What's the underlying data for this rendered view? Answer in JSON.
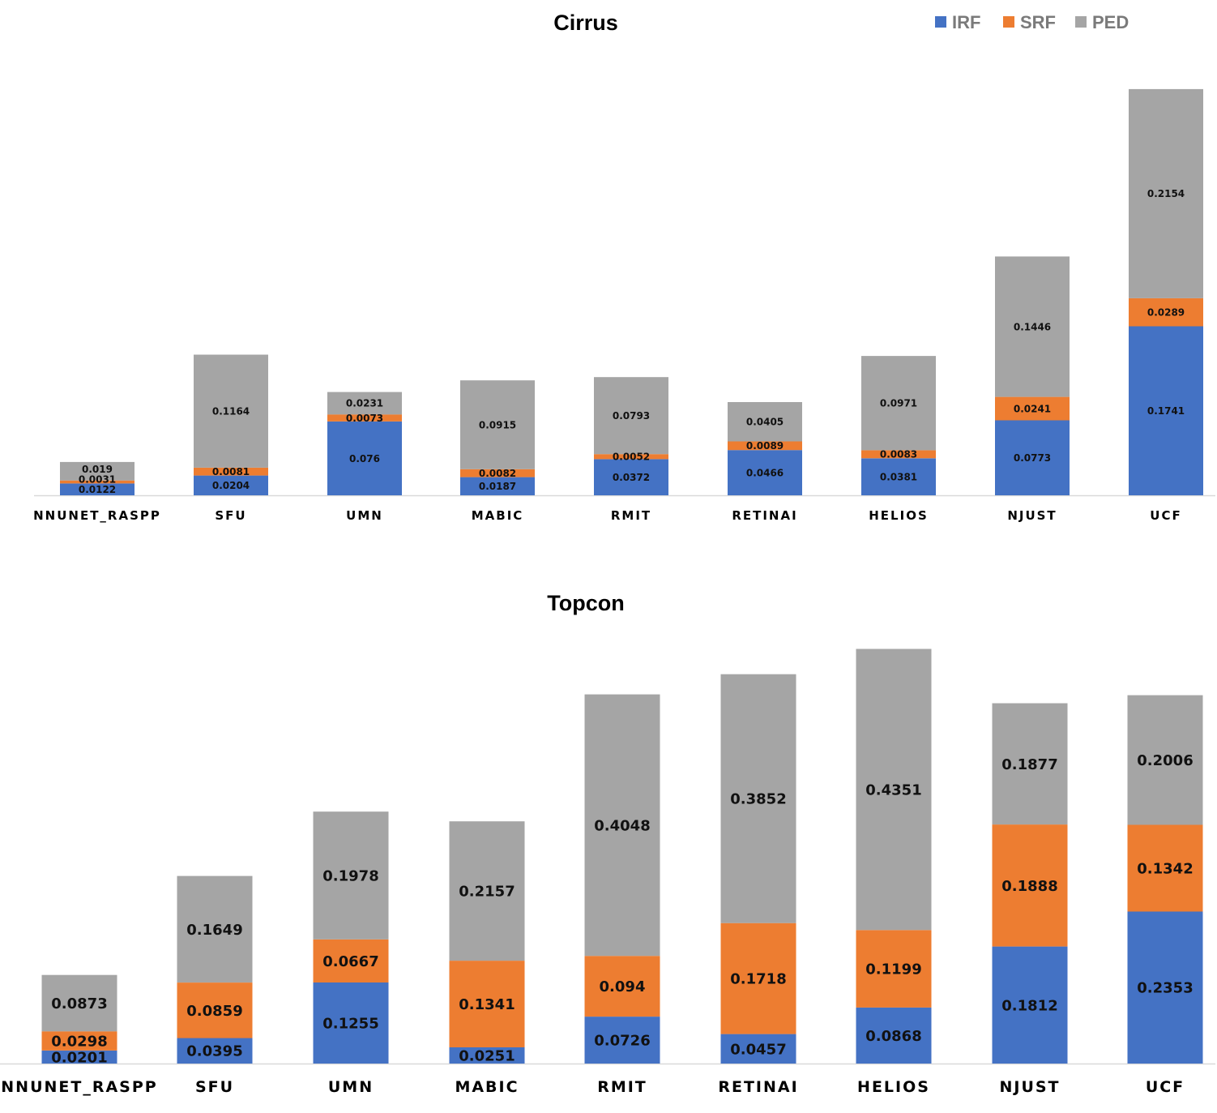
{
  "legend": [
    {
      "name": "IRF",
      "color": "#4472C4"
    },
    {
      "name": "SRF",
      "color": "#ED7D31"
    },
    {
      "name": "PED",
      "color": "#A5A5A5"
    }
  ],
  "chart_data": [
    {
      "type": "bar",
      "stacked": true,
      "title": "Cirrus",
      "xlabel": "",
      "ylabel": "",
      "ylim": [
        0,
        0.43
      ],
      "categories": [
        "NNUNET_RASPP",
        "SFU",
        "UMN",
        "MABIC",
        "RMIT",
        "RETINAI",
        "HELIOS",
        "NJUST",
        "UCF"
      ],
      "series": [
        {
          "name": "IRF",
          "color": "#4472C4",
          "values": [
            0.0122,
            0.0204,
            0.076,
            0.0187,
            0.0372,
            0.0466,
            0.0381,
            0.0773,
            0.1741
          ]
        },
        {
          "name": "SRF",
          "color": "#ED7D31",
          "values": [
            0.0031,
            0.0081,
            0.0073,
            0.0082,
            0.0052,
            0.0089,
            0.0083,
            0.0241,
            0.0289
          ]
        },
        {
          "name": "PED",
          "color": "#A5A5A5",
          "values": [
            0.019,
            0.1164,
            0.0231,
            0.0915,
            0.0793,
            0.0405,
            0.0971,
            0.1446,
            0.2154
          ]
        }
      ],
      "data_labels": [
        [
          "0.0122",
          "0.0031",
          "0.019"
        ],
        [
          "0.0204",
          "0.0081",
          "0.1164"
        ],
        [
          "0.076",
          "0.0073",
          "0.0231"
        ],
        [
          "0.0187",
          "0.0082",
          "0.0915"
        ],
        [
          "0.0372",
          "0.0052",
          "0.0793"
        ],
        [
          "0.0466",
          "0.0089",
          "0.0405"
        ],
        [
          "0.0381",
          "0.0083",
          "0.0971"
        ],
        [
          "0.0773",
          "0.0241",
          "0.1446"
        ],
        [
          "0.1741",
          "0.0289",
          "0.2154"
        ]
      ],
      "grid": false,
      "legend_position": "top-right"
    },
    {
      "type": "bar",
      "stacked": true,
      "title": "Topcon",
      "xlabel": "",
      "ylabel": "",
      "ylim": [
        0,
        0.66
      ],
      "categories": [
        "NNUNET_RASPP",
        "SFU",
        "UMN",
        "MABIC",
        "RMIT",
        "RETINAI",
        "HELIOS",
        "NJUST",
        "UCF"
      ],
      "series": [
        {
          "name": "IRF",
          "color": "#4472C4",
          "values": [
            0.0201,
            0.0395,
            0.1255,
            0.0251,
            0.0726,
            0.0457,
            0.0868,
            0.1812,
            0.2353
          ]
        },
        {
          "name": "SRF",
          "color": "#ED7D31",
          "values": [
            0.0298,
            0.0859,
            0.0667,
            0.1341,
            0.094,
            0.1718,
            0.1199,
            0.1888,
            0.1342
          ]
        },
        {
          "name": "PED",
          "color": "#A5A5A5",
          "values": [
            0.0873,
            0.1649,
            0.1978,
            0.2157,
            0.4048,
            0.3852,
            0.4351,
            0.1877,
            0.2006
          ]
        }
      ],
      "data_labels": [
        [
          "0.0201",
          "0.0298",
          "0.0873"
        ],
        [
          "0.0395",
          "0.0859",
          "0.1649"
        ],
        [
          "0.1255",
          "0.0667",
          "0.1978"
        ],
        [
          "0.0251",
          "0.1341",
          "0.2157"
        ],
        [
          "0.0726",
          "0.094",
          "0.4048"
        ],
        [
          "0.0457",
          "0.1718",
          "0.3852"
        ],
        [
          "0.0868",
          "0.1199",
          "0.4351"
        ],
        [
          "0.1812",
          "0.1888",
          "0.1877"
        ],
        [
          "0.2353",
          "0.1342",
          "0.2006"
        ]
      ],
      "grid": false,
      "legend_position": "none"
    }
  ]
}
